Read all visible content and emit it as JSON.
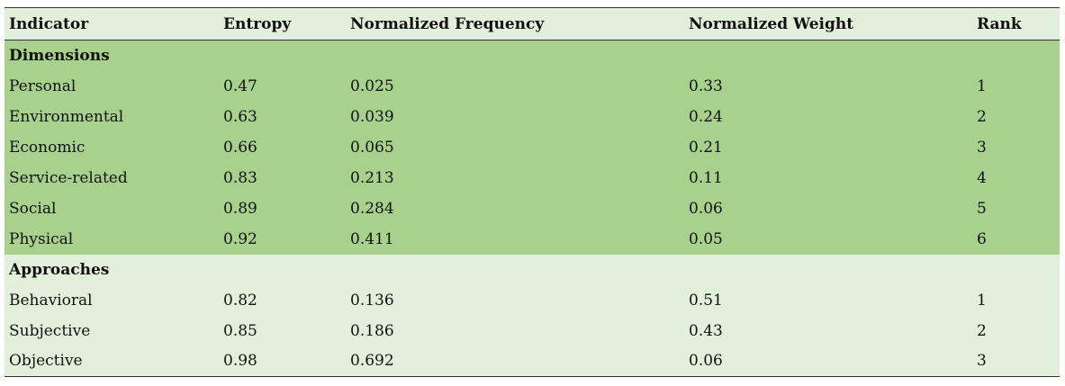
{
  "table": {
    "headers": [
      "Indicator",
      "Entropy",
      "Normalized Frequency",
      "Normalized Weight",
      "Rank"
    ],
    "sections": [
      {
        "title": "Dimensions",
        "rows": [
          [
            "Personal",
            "0.47",
            "0.025",
            "0.33",
            "1"
          ],
          [
            "Environmental",
            "0.63",
            "0.039",
            "0.24",
            "2"
          ],
          [
            "Economic",
            "0.66",
            "0.065",
            "0.21",
            "3"
          ],
          [
            "Service-related",
            "0.83",
            "0.213",
            "0.11",
            "4"
          ],
          [
            "Social",
            "0.89",
            "0.284",
            "0.06",
            "5"
          ],
          [
            "Physical",
            "0.92",
            "0.411",
            "0.05",
            "6"
          ]
        ]
      },
      {
        "title": "Approaches",
        "rows": [
          [
            "Behavioral",
            "0.82",
            "0.136",
            "0.51",
            "1"
          ],
          [
            "Subjective",
            "0.85",
            "0.186",
            "0.43",
            "2"
          ],
          [
            "Objective",
            "0.98",
            "0.692",
            "0.06",
            "3"
          ]
        ]
      }
    ]
  },
  "colors": {
    "header_bg": "#e2efda",
    "dimensions_bg": "#a9d18e",
    "approaches_bg": "#e2efda"
  }
}
